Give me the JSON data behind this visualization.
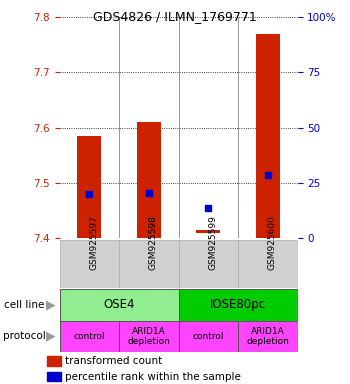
{
  "title": "GDS4826 / ILMN_1769771",
  "samples": [
    "GSM925597",
    "GSM925598",
    "GSM925599",
    "GSM925600"
  ],
  "red_bar_bottoms": [
    7.4,
    7.4,
    7.41,
    7.4
  ],
  "red_bar_tops": [
    7.585,
    7.61,
    7.415,
    7.77
  ],
  "blue_dot_values": [
    7.48,
    7.482,
    7.455,
    7.515
  ],
  "ylim_left": [
    7.4,
    7.8
  ],
  "ylim_right": [
    0,
    100
  ],
  "yticks_left": [
    7.4,
    7.5,
    7.6,
    7.7,
    7.8
  ],
  "yticks_right": [
    0,
    25,
    50,
    75,
    100
  ],
  "cell_line_light_green": "#90ee90",
  "cell_line_bright_green": "#00cc00",
  "protocol_color": "#ff44ff",
  "bar_color": "#cc2200",
  "dot_color": "#0000cc",
  "left_axis_color": "#cc2200",
  "right_axis_color": "#0000cc",
  "title_fontsize": 9,
  "tick_label_fontsize": 7,
  "right_tick_labels": [
    "0",
    "25",
    "50",
    "75",
    "100%"
  ],
  "protocol_labels": [
    "control",
    "ARID1A\ndepletion",
    "control",
    "ARID1A\ndepletion"
  ],
  "cell_line_ose4": "OSE4",
  "cell_line_iose": "IOSE80pc"
}
